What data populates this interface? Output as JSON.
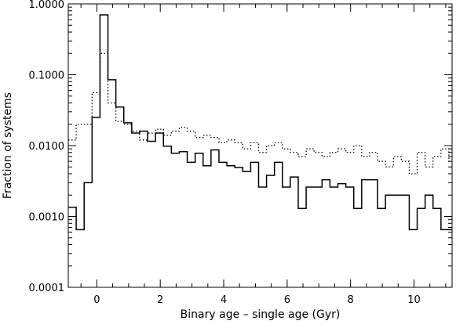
{
  "chart_data": {
    "type": "line",
    "title": "",
    "xlabel": "Binary age – single age (Gyr)",
    "ylabel": "Fraction of systems",
    "xlim": [
      -0.9,
      11.2
    ],
    "ylim": [
      0.0001,
      1.0
    ],
    "y_scale": "log",
    "grid": false,
    "legend": "none",
    "x_ticks": [
      {
        "value": 0,
        "label": "0"
      },
      {
        "value": 2,
        "label": "2"
      },
      {
        "value": 4,
        "label": "4"
      },
      {
        "value": 6,
        "label": "6"
      },
      {
        "value": 8,
        "label": "8"
      },
      {
        "value": 10,
        "label": "10"
      }
    ],
    "y_ticks": [
      {
        "value": 1.0,
        "label": "1.0000"
      },
      {
        "value": 0.1,
        "label": "0.1000"
      },
      {
        "value": 0.01,
        "label": "0.0100"
      },
      {
        "value": 0.001,
        "label": "0.0010"
      },
      {
        "value": 0.0001,
        "label": "0.0001"
      }
    ],
    "bin_width": 0.25,
    "bin_start": -0.9,
    "series": [
      {
        "style": "solid",
        "color": "#000000",
        "values": [
          0.00135,
          0.00065,
          0.003,
          0.025,
          0.7,
          0.085,
          0.035,
          0.021,
          0.015,
          0.016,
          0.0115,
          0.015,
          0.0098,
          0.0078,
          0.0082,
          0.0058,
          0.0078,
          0.0052,
          0.0087,
          0.0058,
          0.0052,
          0.0049,
          0.0043,
          0.0058,
          0.0026,
          0.0038,
          0.0058,
          0.0026,
          0.0036,
          0.0013,
          0.0026,
          0.0026,
          0.0033,
          0.0026,
          0.0029,
          0.0026,
          0.0013,
          0.0033,
          0.0033,
          0.0013,
          0.002,
          0.002,
          0.002,
          0.00065,
          0.0013,
          0.002,
          0.0013,
          0.00065,
          0.00065,
          0.00033,
          0.00065,
          0.0013,
          0.00065,
          0.00032
        ]
      },
      {
        "style": "dotted",
        "color": "#000000",
        "values": [
          0.012,
          0.02,
          0.02,
          0.056,
          0.2,
          0.04,
          0.022,
          0.02,
          0.016,
          0.012,
          0.015,
          0.017,
          0.014,
          0.016,
          0.018,
          0.016,
          0.013,
          0.014,
          0.013,
          0.011,
          0.012,
          0.011,
          0.009,
          0.011,
          0.008,
          0.01,
          0.011,
          0.009,
          0.008,
          0.007,
          0.009,
          0.008,
          0.007,
          0.008,
          0.009,
          0.008,
          0.01,
          0.007,
          0.008,
          0.006,
          0.005,
          0.007,
          0.006,
          0.004,
          0.008,
          0.005,
          0.007,
          0.009,
          0.006,
          0.007,
          0.005,
          0.007,
          0.005,
          0.003
        ]
      }
    ]
  }
}
